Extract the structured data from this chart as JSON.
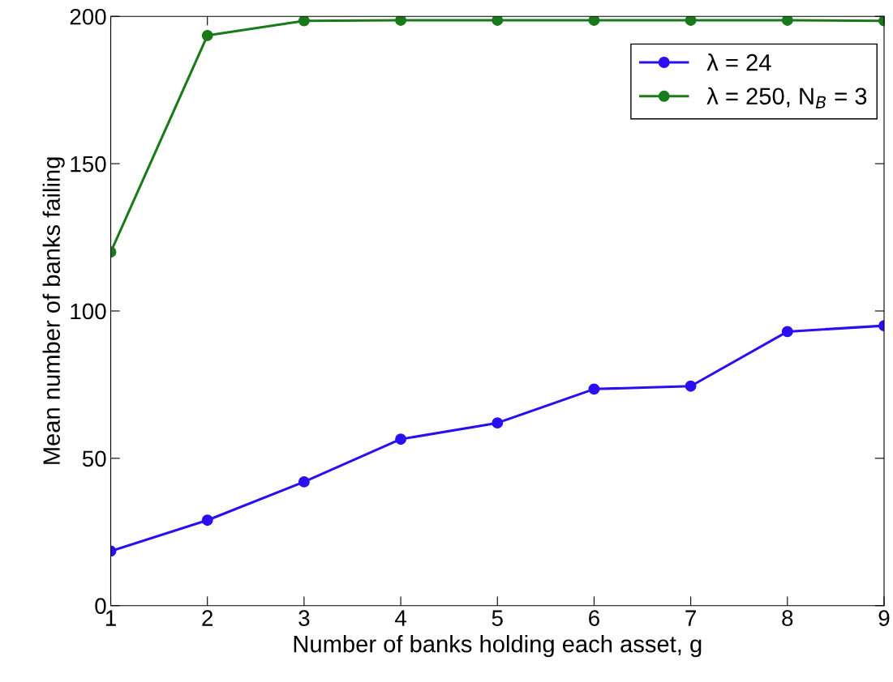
{
  "chart_data": {
    "type": "line",
    "xlabel": "Number of banks holding each asset, g",
    "ylabel": "Mean number of banks failing",
    "x": [
      1,
      2,
      3,
      4,
      5,
      6,
      7,
      8,
      9
    ],
    "series": [
      {
        "name": "λ = 24",
        "color": "#2a0ff0",
        "values": [
          18.5,
          29,
          42,
          56.5,
          62,
          73.5,
          74.5,
          93,
          95
        ]
      },
      {
        "name": "λ = 250, N$_{B}$ = 3",
        "color": "#1a7a1a",
        "values": [
          120,
          193.5,
          198.5,
          198.7,
          198.7,
          198.7,
          198.7,
          198.7,
          198.5
        ]
      }
    ],
    "xlim": [
      1,
      9
    ],
    "ylim": [
      0,
      200
    ],
    "xticks": [
      1,
      2,
      3,
      4,
      5,
      6,
      7,
      8,
      9
    ],
    "yticks": [
      0,
      50,
      100,
      150,
      200
    ],
    "grid": false,
    "legend": "top right",
    "marker": "circle",
    "line_style": "solid"
  }
}
